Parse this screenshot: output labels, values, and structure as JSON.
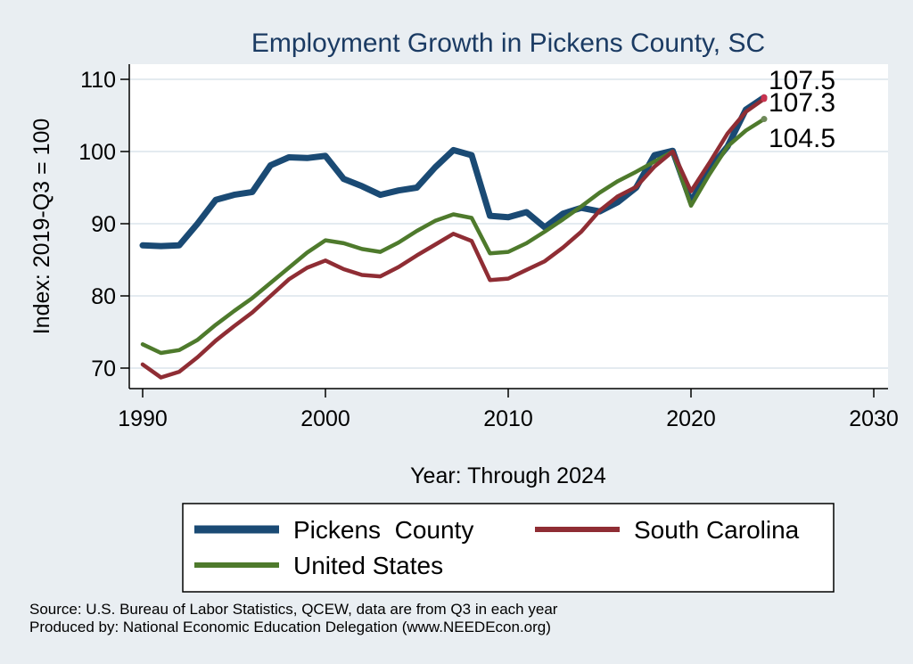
{
  "chart_data": {
    "type": "line",
    "title": "Employment Growth in Pickens County, SC",
    "xlabel": "Year: Through 2024",
    "ylabel": "Index: 2019-Q3 = 100",
    "xlim": [
      1990,
      2030
    ],
    "ylim": [
      66,
      112
    ],
    "x_ticks": [
      1990,
      2000,
      2010,
      2020,
      2030
    ],
    "y_ticks": [
      70,
      80,
      90,
      100,
      110
    ],
    "grid": true,
    "legend_position": "bottom",
    "x": [
      1990,
      1991,
      1992,
      1993,
      1994,
      1995,
      1996,
      1997,
      1998,
      1999,
      2000,
      2001,
      2002,
      2003,
      2004,
      2005,
      2006,
      2007,
      2008,
      2009,
      2010,
      2011,
      2012,
      2013,
      2014,
      2015,
      2016,
      2017,
      2018,
      2019,
      2020,
      2021,
      2022,
      2023,
      2024
    ],
    "series": [
      {
        "name": "Pickens  County",
        "color": "#1a4a74",
        "width": 7,
        "values": [
          87.0,
          86.9,
          87.0,
          90.0,
          93.3,
          94.0,
          94.4,
          98.1,
          99.2,
          99.1,
          99.4,
          96.2,
          95.2,
          94.0,
          94.6,
          95.0,
          97.8,
          100.2,
          99.5,
          91.1,
          90.9,
          91.6,
          89.5,
          91.4,
          92.2,
          91.7,
          93.0,
          95.0,
          99.5,
          100.1,
          93.0,
          97.6,
          100.7,
          105.8,
          107.5
        ]
      },
      {
        "name": "South Carolina",
        "color": "#8f2d34",
        "width": 4.5,
        "values": [
          70.5,
          68.7,
          69.5,
          71.5,
          73.8,
          75.8,
          77.7,
          80.0,
          82.3,
          83.9,
          84.9,
          83.7,
          82.9,
          82.7,
          84.0,
          85.6,
          87.1,
          88.6,
          87.6,
          82.2,
          82.4,
          83.6,
          84.8,
          86.7,
          88.9,
          91.8,
          93.8,
          95.1,
          97.9,
          100.0,
          94.5,
          98.4,
          102.5,
          105.5,
          107.3
        ]
      },
      {
        "name": "United States",
        "color": "#4e7a2c",
        "width": 4.5,
        "values": [
          73.3,
          72.1,
          72.5,
          73.9,
          76.0,
          77.9,
          79.7,
          81.8,
          83.9,
          86.0,
          87.7,
          87.3,
          86.5,
          86.1,
          87.4,
          89.0,
          90.4,
          91.3,
          90.8,
          85.9,
          86.1,
          87.3,
          88.9,
          90.6,
          92.4,
          94.3,
          95.9,
          97.2,
          98.6,
          100.0,
          92.5,
          96.8,
          100.7,
          102.9,
          104.5
        ]
      }
    ],
    "end_labels": [
      "107.5",
      "107.3",
      "104.5"
    ]
  },
  "legend": {
    "items": [
      {
        "label": "Pickens  County",
        "color": "#1a4a74"
      },
      {
        "label": "South Carolina",
        "color": "#8f2d34"
      },
      {
        "label": "United States",
        "color": "#4e7a2c"
      }
    ]
  },
  "source": {
    "line1": "Source: U.S. Bureau of Labor Statistics, QCEW, data are from Q3 in each year",
    "line2": "Produced by: National Economic Education Delegation (www.NEEDEcon.org)"
  },
  "colors": {
    "plot_background": "#ffffff",
    "page_background": "#e9eef2",
    "gridline": "#e4ebf0",
    "end_marker": "#c8334f"
  }
}
